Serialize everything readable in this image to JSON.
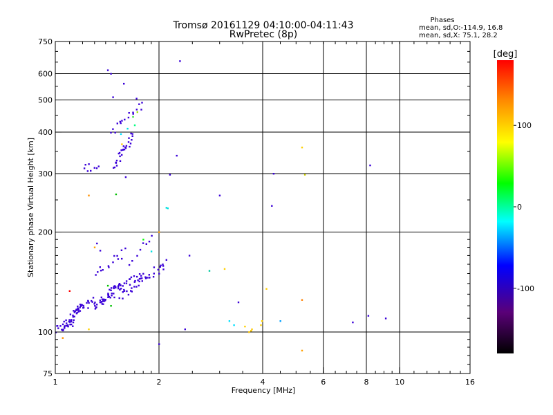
{
  "chart_data": {
    "type": "scatter",
    "title": "Tromsø 20161129 04:10:00-04:11:43",
    "subtitle": "RwPretec (8p)",
    "phases_title": "Phases",
    "phases_lines": [
      "mean, sd,O:-114.9, 16.8",
      "mean, sd,X:  75.1, 28.2"
    ],
    "xlabel": "Frequency [MHz]",
    "ylabel": "Stationary phase Virtual Height [km]",
    "xscale": "log",
    "yscale": "log",
    "xlim": [
      1,
      16
    ],
    "ylim": [
      75,
      750
    ],
    "grid": true,
    "x_ticks": [
      {
        "v": 1,
        "label": "1"
      },
      {
        "v": 2,
        "label": "2"
      },
      {
        "v": 4,
        "label": "4"
      },
      {
        "v": 6,
        "label": "6"
      },
      {
        "v": 8,
        "label": "8"
      },
      {
        "v": 10,
        "label": "10"
      },
      {
        "v": 16,
        "label": "16"
      }
    ],
    "x_grid": [
      2,
      4,
      6,
      8,
      10
    ],
    "y_ticks": [
      {
        "v": 75,
        "label": "75"
      },
      {
        "v": 100,
        "label": "100"
      },
      {
        "v": 200,
        "label": "200"
      },
      {
        "v": 300,
        "label": "300"
      },
      {
        "v": 400,
        "label": "400"
      },
      {
        "v": 500,
        "label": "500"
      },
      {
        "v": 600,
        "label": "600"
      },
      {
        "v": 750,
        "label": "750"
      }
    ],
    "y_grid": [
      100,
      200,
      300,
      400,
      500,
      600
    ],
    "colorbar": {
      "label": "[deg]",
      "range": [
        -180,
        180
      ],
      "ticks": [
        {
          "v": 100,
          "label": "100"
        },
        {
          "v": 0,
          "label": "0"
        },
        {
          "v": -100,
          "label": "-100"
        }
      ],
      "colors": [
        "#000000",
        "#5a0078",
        "#0000ff",
        "#00ffff",
        "#00ff00",
        "#ffff00",
        "#ff8c00",
        "#ff0000"
      ]
    },
    "o_mode": {
      "color": "#3a00d8",
      "segments": [
        {
          "x0": 1.0,
          "x1": 1.13,
          "y0": 101,
          "y1": 107,
          "n": 18
        },
        {
          "x0": 1.05,
          "x1": 1.2,
          "y0": 104,
          "y1": 120,
          "n": 26
        },
        {
          "x0": 1.12,
          "x1": 1.3,
          "y0": 113,
          "y1": 125,
          "n": 24
        },
        {
          "x0": 1.3,
          "x1": 1.55,
          "y0": 118,
          "y1": 140,
          "n": 30
        },
        {
          "x0": 1.35,
          "x1": 1.8,
          "y0": 124,
          "y1": 150,
          "n": 36
        },
        {
          "x0": 1.55,
          "x1": 2.05,
          "y0": 128,
          "y1": 158,
          "n": 30
        },
        {
          "x0": 1.3,
          "x1": 1.6,
          "y0": 150,
          "y1": 175,
          "n": 14
        },
        {
          "x0": 1.48,
          "x1": 1.68,
          "y0": 318,
          "y1": 392,
          "n": 28
        },
        {
          "x0": 1.45,
          "x1": 1.78,
          "y0": 400,
          "y1": 485,
          "n": 16
        },
        {
          "x0": 1.22,
          "x1": 1.32,
          "y0": 312,
          "y1": 318,
          "n": 8
        },
        {
          "x0": 1.65,
          "x1": 1.9,
          "y0": 160,
          "y1": 198,
          "n": 8
        }
      ],
      "points": [
        [
          1.42,
          615
        ],
        [
          1.45,
          600
        ],
        [
          1.58,
          560
        ],
        [
          1.47,
          510
        ],
        [
          1.72,
          505
        ],
        [
          1.32,
          185
        ],
        [
          1.35,
          176
        ],
        [
          2.3,
          655
        ],
        [
          2.25,
          340
        ],
        [
          2.38,
          102
        ],
        [
          2.45,
          170
        ],
        [
          2.15,
          298
        ],
        [
          3.4,
          123
        ],
        [
          4.3,
          300
        ],
        [
          4.25,
          240
        ],
        [
          7.3,
          107
        ],
        [
          8.1,
          112
        ],
        [
          9.1,
          110
        ],
        [
          8.2,
          318
        ],
        [
          2.0,
          150
        ],
        [
          2.05,
          160
        ],
        [
          2.1,
          165
        ],
        [
          1.6,
          293
        ],
        [
          3.0,
          258
        ],
        [
          2.0,
          92
        ]
      ]
    },
    "other_points": [
      {
        "x": 2.1,
        "y": 237,
        "c": "#00e0e0"
      },
      {
        "x": 2.12,
        "y": 236,
        "c": "#00e0e0"
      },
      {
        "x": 2.8,
        "y": 153,
        "c": "#00c8a0"
      },
      {
        "x": 3.2,
        "y": 108,
        "c": "#00e0ff"
      },
      {
        "x": 3.3,
        "y": 105,
        "c": "#00e0ff"
      },
      {
        "x": 3.65,
        "y": 100,
        "c": "#ffc800"
      },
      {
        "x": 3.7,
        "y": 101,
        "c": "#ffc800"
      },
      {
        "x": 3.72,
        "y": 102,
        "c": "#ffc800"
      },
      {
        "x": 3.95,
        "y": 105,
        "c": "#ffd000"
      },
      {
        "x": 3.98,
        "y": 108,
        "c": "#ffd000"
      },
      {
        "x": 3.55,
        "y": 104,
        "c": "#ffd000"
      },
      {
        "x": 4.5,
        "y": 108,
        "c": "#00a0ff"
      },
      {
        "x": 4.1,
        "y": 135,
        "c": "#ffd000"
      },
      {
        "x": 5.2,
        "y": 125,
        "c": "#ff8000"
      },
      {
        "x": 5.2,
        "y": 88,
        "c": "#ffa000"
      },
      {
        "x": 5.2,
        "y": 360,
        "c": "#ffd000"
      },
      {
        "x": 5.3,
        "y": 298,
        "c": "#d0d000"
      },
      {
        "x": 3.1,
        "y": 155,
        "c": "#ffd000"
      },
      {
        "x": 1.25,
        "y": 258,
        "c": "#ff9000"
      },
      {
        "x": 1.5,
        "y": 260,
        "c": "#00c000"
      },
      {
        "x": 1.73,
        "y": 460,
        "c": "#a0e000"
      },
      {
        "x": 1.68,
        "y": 445,
        "c": "#40e040"
      },
      {
        "x": 1.62,
        "y": 410,
        "c": "#00e0e0"
      },
      {
        "x": 1.55,
        "y": 395,
        "c": "#00e0ff"
      },
      {
        "x": 1.7,
        "y": 420,
        "c": "#00ff80"
      },
      {
        "x": 1.05,
        "y": 96,
        "c": "#ff9000"
      },
      {
        "x": 1.25,
        "y": 102,
        "c": "#ffd000"
      },
      {
        "x": 1.45,
        "y": 120,
        "c": "#00c000"
      },
      {
        "x": 1.9,
        "y": 175,
        "c": "#00e0e0"
      },
      {
        "x": 2.0,
        "y": 200,
        "c": "#ffa000"
      },
      {
        "x": 1.3,
        "y": 180,
        "c": "#ffa000"
      },
      {
        "x": 1.56,
        "y": 368,
        "c": "#ffd000"
      },
      {
        "x": 1.42,
        "y": 138,
        "c": "#00c000"
      },
      {
        "x": 1.1,
        "y": 133,
        "c": "#ff0000"
      },
      {
        "x": 1.8,
        "y": 190,
        "c": "#00ff00"
      }
    ]
  }
}
